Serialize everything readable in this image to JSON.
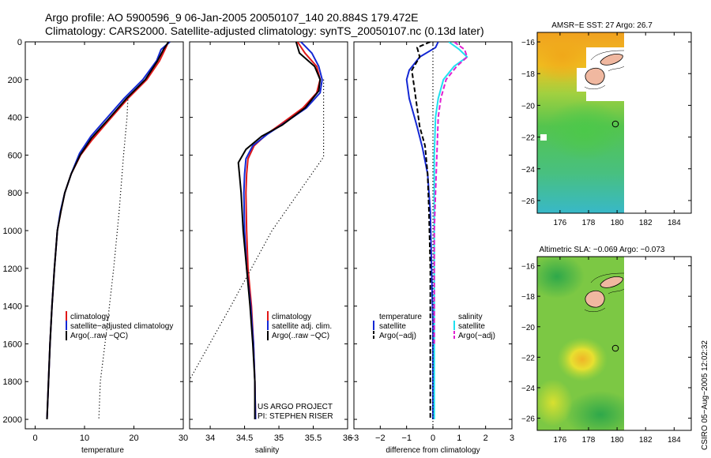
{
  "header": {
    "line1": "Argo profile: AO 5900596_9 06-Jan-2005 20050107_140 20.884S 179.472E",
    "line2": "Climatology: CARS2000. Satellite-adjusted climatology: synTS_20050107.nc (0.13d later)"
  },
  "colors": {
    "red": "#e01818",
    "blue": "#1428d4",
    "black": "#000000",
    "cyan": "#20e0f0",
    "magenta": "#e020d0"
  },
  "chart_data": [
    {
      "type": "line",
      "xlabel": "temperature",
      "ylabel": "",
      "xlim": [
        -2,
        30
      ],
      "ylim": [
        2050,
        0
      ],
      "xticks": [
        "0",
        "10",
        "20",
        "30"
      ],
      "yticks": [
        "0",
        "200",
        "400",
        "600",
        "800",
        "1000",
        "1200",
        "1400",
        "1600",
        "1800",
        "2000"
      ],
      "legend": [
        "climatology",
        "satellite−adjusted climatology",
        "Argo(..raw −QC)"
      ],
      "legend_position": "lower-middle",
      "series": [
        {
          "name": "climatology",
          "color": "red",
          "style": "solid",
          "points": [
            [
              27.0,
              0
            ],
            [
              26.3,
              40
            ],
            [
              25.2,
              100
            ],
            [
              22.6,
              200
            ],
            [
              18.8,
              300
            ],
            [
              14.8,
              420
            ],
            [
              11.5,
              520
            ],
            [
              9.2,
              600
            ],
            [
              7.3,
              700
            ],
            [
              6.0,
              800
            ],
            [
              5.2,
              900
            ],
            [
              4.5,
              1000
            ],
            [
              3.9,
              1200
            ],
            [
              3.4,
              1400
            ],
            [
              3.0,
              1600
            ],
            [
              2.7,
              1800
            ],
            [
              2.4,
              2000
            ]
          ]
        },
        {
          "name": "satellite−adjusted climatology",
          "color": "blue",
          "style": "solid",
          "points": [
            [
              27.3,
              0
            ],
            [
              25.5,
              40
            ],
            [
              24.6,
              100
            ],
            [
              21.8,
              200
            ],
            [
              18.0,
              300
            ],
            [
              14.3,
              410
            ],
            [
              11.3,
              500
            ],
            [
              9.0,
              590
            ],
            [
              7.3,
              700
            ],
            [
              6.0,
              800
            ],
            [
              5.1,
              900
            ],
            [
              4.5,
              1000
            ],
            [
              3.9,
              1200
            ],
            [
              3.4,
              1400
            ],
            [
              3.0,
              1600
            ],
            [
              2.7,
              1800
            ],
            [
              2.4,
              2000
            ]
          ]
        },
        {
          "name": "Argo(..raw −QC)",
          "color": "black",
          "style": "solid",
          "points": [
            [
              27.0,
              0
            ],
            [
              26.0,
              40
            ],
            [
              24.8,
              100
            ],
            [
              22.3,
              200
            ],
            [
              18.5,
              300
            ],
            [
              14.5,
              420
            ],
            [
              11.4,
              510
            ],
            [
              9.1,
              600
            ],
            [
              7.3,
              700
            ],
            [
              6.0,
              800
            ],
            [
              5.2,
              900
            ],
            [
              4.5,
              1000
            ],
            [
              3.9,
              1200
            ],
            [
              3.4,
              1400
            ],
            [
              3.0,
              1600
            ],
            [
              2.7,
              1800
            ],
            [
              2.4,
              2000
            ]
          ]
        },
        {
          "name": "",
          "color": "black",
          "style": "dotted",
          "points": [
            [
              18.8,
              290
            ],
            [
              18.6,
              400
            ],
            [
              17.9,
              600
            ],
            [
              17.0,
              900
            ],
            [
              15.9,
              1200
            ],
            [
              14.6,
              1500
            ],
            [
              13.2,
              1800
            ],
            [
              12.9,
              2000
            ]
          ]
        }
      ]
    },
    {
      "type": "line",
      "xlabel": "salinity",
      "ylabel": "",
      "xlim": [
        33.7,
        36.0
      ],
      "ylim": [
        2050,
        0
      ],
      "xticks": [
        "34",
        "34.5",
        "35",
        "35.5",
        "36"
      ],
      "legend": [
        "climatology",
        "satellite adj. clim.",
        "Argo(..raw −QC)"
      ],
      "legend_position": "lower-right",
      "annotations": [
        "US ARGO PROJECT",
        "PI: STEPHEN RISER"
      ],
      "series": [
        {
          "name": "climatology",
          "color": "red",
          "style": "solid",
          "points": [
            [
              35.27,
              0
            ],
            [
              35.38,
              60
            ],
            [
              35.55,
              130
            ],
            [
              35.6,
              200
            ],
            [
              35.55,
              270
            ],
            [
              35.35,
              350
            ],
            [
              35.05,
              430
            ],
            [
              34.82,
              490
            ],
            [
              34.64,
              550
            ],
            [
              34.55,
              620
            ],
            [
              34.53,
              700
            ],
            [
              34.52,
              800
            ],
            [
              34.53,
              1000
            ],
            [
              34.55,
              1200
            ],
            [
              34.6,
              1400
            ],
            [
              34.63,
              1600
            ],
            [
              34.65,
              1800
            ],
            [
              34.66,
              2000
            ]
          ]
        },
        {
          "name": "satellite adj. clim.",
          "color": "blue",
          "style": "solid",
          "points": [
            [
              35.32,
              0
            ],
            [
              35.48,
              60
            ],
            [
              35.58,
              130
            ],
            [
              35.63,
              200
            ],
            [
              35.6,
              270
            ],
            [
              35.4,
              350
            ],
            [
              35.08,
              430
            ],
            [
              34.83,
              490
            ],
            [
              34.62,
              550
            ],
            [
              34.52,
              620
            ],
            [
              34.5,
              700
            ],
            [
              34.49,
              800
            ],
            [
              34.5,
              1000
            ],
            [
              34.53,
              1200
            ],
            [
              34.59,
              1400
            ],
            [
              34.63,
              1600
            ],
            [
              34.65,
              1800
            ],
            [
              34.66,
              2000
            ]
          ]
        },
        {
          "name": "Argo(..raw −QC)",
          "color": "black",
          "style": "solid",
          "points": [
            [
              35.25,
              0
            ],
            [
              35.3,
              60
            ],
            [
              35.52,
              130
            ],
            [
              35.6,
              200
            ],
            [
              35.58,
              260
            ],
            [
              35.38,
              350
            ],
            [
              35.05,
              440
            ],
            [
              34.75,
              500
            ],
            [
              34.52,
              570
            ],
            [
              34.41,
              640
            ],
            [
              34.43,
              720
            ],
            [
              34.45,
              800
            ],
            [
              34.48,
              1000
            ],
            [
              34.53,
              1200
            ],
            [
              34.58,
              1400
            ],
            [
              34.62,
              1600
            ],
            [
              34.65,
              1800
            ],
            [
              34.65,
              2000
            ]
          ]
        },
        {
          "name": "",
          "color": "black",
          "style": "dotted",
          "points": [
            [
              35.65,
              200
            ],
            [
              35.65,
              350
            ],
            [
              35.65,
              610
            ],
            [
              34.9,
              1000
            ],
            [
              34.3,
              1400
            ],
            [
              33.7,
              1790
            ]
          ]
        }
      ]
    },
    {
      "type": "line",
      "xlabel": "difference from climatology",
      "ylabel": "",
      "xlim": [
        -3,
        3
      ],
      "ylim": [
        2050,
        0
      ],
      "xticks": [
        "−3",
        "−2",
        "−1",
        "0",
        "1",
        "2",
        "3"
      ],
      "legend": [
        "temperature",
        "satellite",
        "Argo(−adj)",
        "salinity",
        "satellite",
        "Argo(−adj)"
      ],
      "legend_position": "lower",
      "series": [
        {
          "name": "temperature satellite",
          "color": "blue",
          "style": "solid",
          "points": [
            [
              0.2,
              0
            ],
            [
              0.1,
              30
            ],
            [
              -0.5,
              80
            ],
            [
              -0.9,
              150
            ],
            [
              -1.0,
              200
            ],
            [
              -0.9,
              300
            ],
            [
              -0.7,
              400
            ],
            [
              -0.6,
              450
            ],
            [
              -0.4,
              560
            ],
            [
              -0.2,
              700
            ],
            [
              -0.1,
              900
            ],
            [
              -0.05,
              1200
            ],
            [
              0,
              1500
            ],
            [
              0,
              2000
            ]
          ]
        },
        {
          "name": "temperature Argo(−adj)",
          "color": "black",
          "style": "dashed",
          "points": [
            [
              -0.1,
              0
            ],
            [
              -0.6,
              30
            ],
            [
              -0.5,
              80
            ],
            [
              -0.8,
              150
            ],
            [
              -0.7,
              250
            ],
            [
              -0.6,
              350
            ],
            [
              -0.5,
              450
            ],
            [
              -0.3,
              550
            ],
            [
              -0.2,
              700
            ],
            [
              -0.15,
              900
            ],
            [
              -0.1,
              1200
            ],
            [
              -0.1,
              1600
            ],
            [
              -0.1,
              2000
            ]
          ]
        },
        {
          "name": "salinity satellite",
          "color": "cyan",
          "style": "solid",
          "points": [
            [
              0.6,
              0
            ],
            [
              1.0,
              40
            ],
            [
              1.3,
              80
            ],
            [
              0.8,
              130
            ],
            [
              0.4,
              200
            ],
            [
              0.2,
              300
            ],
            [
              0.1,
              400
            ],
            [
              0.05,
              600
            ],
            [
              0.05,
              900
            ],
            [
              0.05,
              1400
            ],
            [
              0.05,
              2000
            ]
          ]
        },
        {
          "name": "salinity Argo(−adj)",
          "color": "magenta",
          "style": "dashed",
          "points": [
            [
              0.8,
              0
            ],
            [
              1.2,
              40
            ],
            [
              1.3,
              80
            ],
            [
              0.9,
              130
            ],
            [
              0.5,
              200
            ],
            [
              0.3,
              300
            ],
            [
              0.2,
              400
            ],
            [
              0.15,
              600
            ],
            [
              0.1,
              800
            ],
            [
              0.05,
              1000
            ],
            [
              0.05,
              1400
            ],
            [
              0.05,
              1600
            ]
          ]
        },
        {
          "name": "",
          "color": "black",
          "style": "dotted",
          "points": [
            [
              0,
              0
            ],
            [
              0,
              2050
            ]
          ]
        }
      ]
    },
    {
      "type": "heatmap",
      "title": "AMSR−E SST: 27 Argo: 26.7",
      "xticks": [
        "176",
        "178",
        "180",
        "182",
        "184"
      ],
      "yticks": [
        "−16",
        "−18",
        "−20",
        "−22",
        "−24",
        "−26"
      ],
      "xlim": [
        174.4,
        185.2
      ],
      "ylim": [
        -26.8,
        -15.4
      ],
      "grid": false
    },
    {
      "type": "heatmap",
      "title": "Altimetric SLA: −0.069 Argo: −0.073",
      "xticks": [
        "176",
        "178",
        "180",
        "182",
        "184"
      ],
      "yticks": [
        "−16",
        "−18",
        "−20",
        "−22",
        "−24",
        "−26"
      ],
      "xlim": [
        174.4,
        185.2
      ],
      "ylim": [
        -26.8,
        -15.4
      ],
      "grid": false
    }
  ],
  "side_credit": "CSIRO 05−Aug−2005 12:02:32"
}
